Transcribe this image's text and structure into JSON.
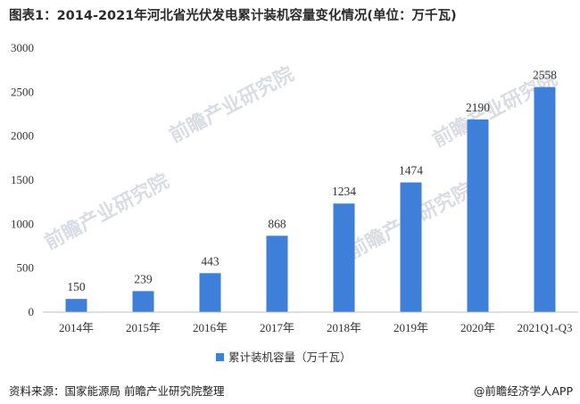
{
  "header": {
    "title": "图表1：2014-2021年河北省光伏发电累计装机容量变化情况(单位：万千瓦)"
  },
  "footer": {
    "source": "资料来源：国家能源局 前瞻产业研究院整理",
    "brand": "@前瞻经济学人APP"
  },
  "watermark": {
    "text": "前瞻产业研究院"
  },
  "colors": {
    "bar": "#3d7fd9",
    "axis": "#bfbfbf"
  },
  "chart_data": {
    "type": "bar",
    "title": "图表1：2014-2021年河北省光伏发电累计装机容量变化情况(单位：万千瓦)",
    "xlabel": "",
    "ylabel": "",
    "categories": [
      "2014年",
      "2015年",
      "2016年",
      "2017年",
      "2018年",
      "2019年",
      "2020年",
      "2021Q1-Q3"
    ],
    "series": [
      {
        "name": "累计装机容量（万千瓦）",
        "values": [
          150,
          239,
          443,
          868,
          1234,
          1474,
          2190,
          2558
        ]
      }
    ],
    "value_labels": [
      "150",
      "239",
      "443",
      "868",
      "1234",
      "1474",
      "2190",
      "2558"
    ],
    "ylim": [
      0,
      3000
    ],
    "yticks": [
      "0",
      "500",
      "1000",
      "1500",
      "2000",
      "2500",
      "3000"
    ],
    "grid": false,
    "legend_position": "bottom-center"
  }
}
